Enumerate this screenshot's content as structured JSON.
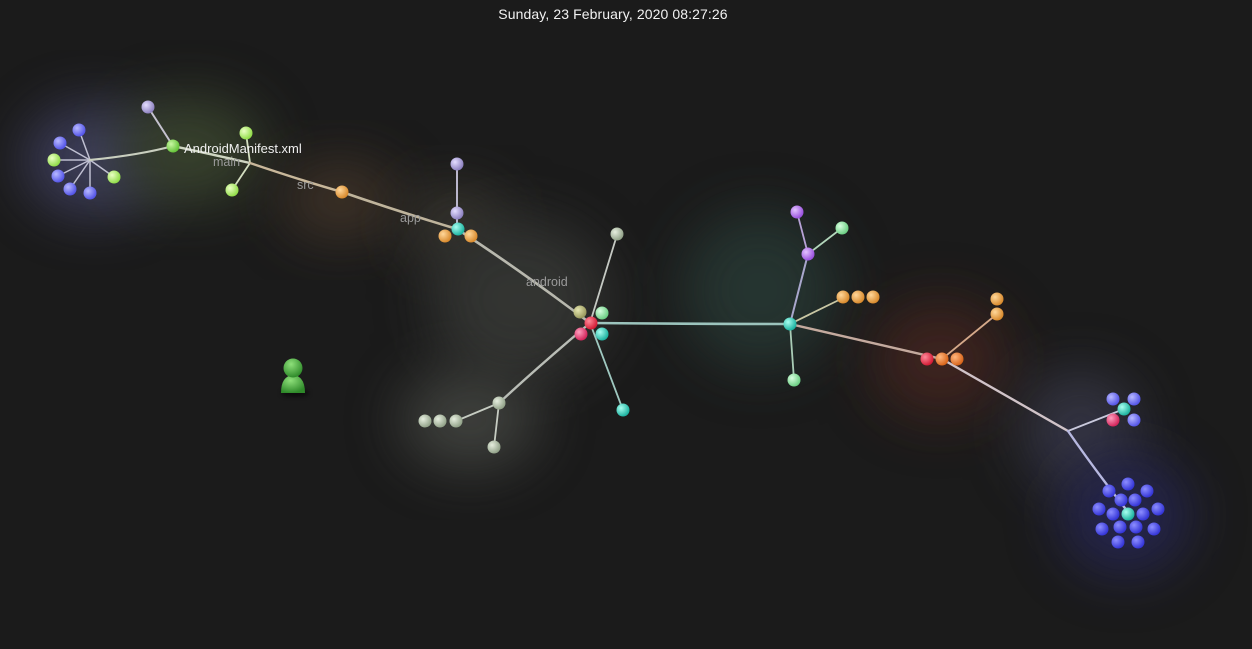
{
  "header": {
    "datetime": "Sunday, 23 February, 2020 08:27:26"
  },
  "labels": {
    "file": "AndroidManifest.xml",
    "dirs": [
      "main",
      "src",
      "app",
      "android"
    ]
  },
  "colors": {
    "background": "#1b1b1b",
    "edge": "#bdbdbd",
    "user_avatar": "#46a63c",
    "purple_file": "#9c90c8",
    "lime_file": "#b4ef6c",
    "blue_file": "#6b6cf2",
    "orange_file": "#e8a049",
    "teal_file": "#2fc9b6",
    "pink_file": "#e2376c",
    "sage_file": "#a9b7a0",
    "mint_file": "#88dc9c",
    "violet_file": "#b070e8",
    "red_file": "#e02b42",
    "deep_orange_file": "#e57a2c",
    "indigo_file": "#4d4ee8"
  },
  "icons": {
    "user": "user-avatar-icon"
  }
}
